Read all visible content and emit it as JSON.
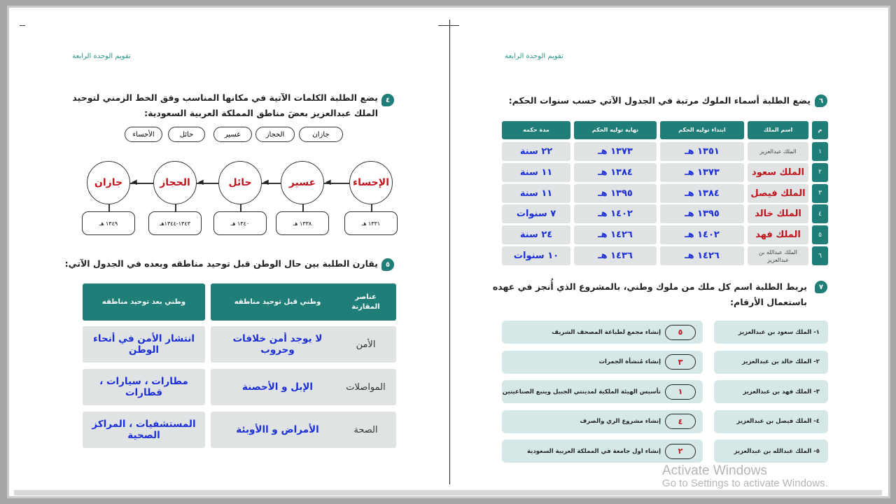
{
  "left_page": {
    "header": "تقويم الوحدة الرابعة",
    "q4": {
      "number": "٤",
      "line1": "يضع الطلبة الكلمات الآتية في مكانها المناسب وفق الخط الزمني لتوحيد",
      "line2": "الملك عبدالعزيز بعضَ مناطق المملكة العربية السعودية:",
      "words": [
        "جازان",
        "الحجاز",
        "عسير",
        "حائل",
        "الأحساء"
      ],
      "timeline": [
        {
          "region": "الإحساء",
          "year": "١٣٣١ هـ"
        },
        {
          "region": "عسير",
          "year": "١٣٣٨ هـ"
        },
        {
          "region": "حائل",
          "year": "١٣٤٠ هـ"
        },
        {
          "region": "الحجاز",
          "year": "١٣٤٣-١٣٤٤هـ"
        },
        {
          "region": "جازان",
          "year": "١٣٤٩ هـ"
        }
      ]
    },
    "q5": {
      "number": "٥",
      "text": "يقارن الطلبة بين حال الوطن قبل توحيد مناطقه وبعده في الجدول الآتي:",
      "headers": [
        "عناصر المقارنة",
        "وطني قبل توحيد مناطقه",
        "وطني بعد توحيد مناطقه"
      ],
      "rows": [
        [
          "الأمن",
          "لا يوجد أمن خلافات وحروب",
          "انتشار الأمن في أنحاء الوطن"
        ],
        [
          "المواصلات",
          "الإبل و الأحصنة",
          "مطارات ، سيارات ، قطارات"
        ],
        [
          "الصحة",
          "الأمراض و االأوبئة",
          "المستشفيات ، المراكز الصحية"
        ]
      ]
    }
  },
  "right_page": {
    "header": "تقويم الوحدة الرابعة",
    "q6": {
      "number": "٦",
      "text": "يضع الطلبة  أسماء الملوك مرتبة في الجدول الآتي حسب سنوات الحكم:",
      "headers": [
        "م",
        "اسم الملك",
        "ابتداء توليه الحكم",
        "نهاية توليه الحكم",
        "مدة حكمه"
      ],
      "rows": [
        [
          "١",
          "الملك عبدالعزيز",
          "١٣٥١ هـ",
          "١٣٧٣ هـ",
          "٢٢ سنة"
        ],
        [
          "٢",
          "الملك سعود",
          "١٣٧٣ هـ",
          "١٣٨٤ هـ",
          "١١ سنة"
        ],
        [
          "٣",
          "الملك فيصل",
          "١٣٨٤ هـ",
          "١٣٩٥ هـ",
          "١١ سنة"
        ],
        [
          "٤",
          "الملك خالد",
          "١٣٩٥ هـ",
          "١٤٠٢ هـ",
          "٧ سنوات"
        ],
        [
          "٥",
          "الملك فهد",
          "١٤٠٢ هـ",
          "١٤٢٦ هـ",
          "٢٤ سنة"
        ],
        [
          "٦",
          "الملك عبدالله بن عبدالعزيز",
          "١٤٢٦ هـ",
          "١٤٣٦ هـ",
          "١٠ سنوات"
        ]
      ]
    },
    "q7": {
      "number": "٧",
      "line1": "يربط الطلبة اسم كل ملك من ملوك وطني، بالمشروع الذي أُنجز في عهده",
      "line2": "باستعمال الأرقام:",
      "rows": [
        {
          "king": "١- الملك سعود بن عبدالعزيز",
          "answer": "٥",
          "project": "إنشاء مجمع لطباعة المصحف الشريف"
        },
        {
          "king": "٢- الملك خالد  بن عبدالعزيز",
          "answer": "٣",
          "project": "إنشاء مُنشأة الجمرات"
        },
        {
          "king": "٣- الملك فهد بن عبدالعزيز",
          "answer": "١",
          "project": "تأسيس الهيئة الملكية لمدينتي الجبيل وينبع الصناعيتين"
        },
        {
          "king": "٤- الملك فيصل بن عبدالعزيز",
          "answer": "٤",
          "project": "إنشاء مشروع الري والصرف"
        },
        {
          "king": "٥- الملك عبدالله بن عبدالعزيز",
          "answer": "٢",
          "project": "إنشاء اول جامعة في المملكة العربية السعودية"
        }
      ]
    }
  },
  "watermark": {
    "line1": "Activate Windows",
    "line2": "Go to Settings to activate Windows."
  },
  "colors": {
    "teal": "#1f7f78",
    "answer_blue": "#1c2fd6",
    "answer_red": "#c0141c",
    "cell": "#dfe3e3"
  }
}
